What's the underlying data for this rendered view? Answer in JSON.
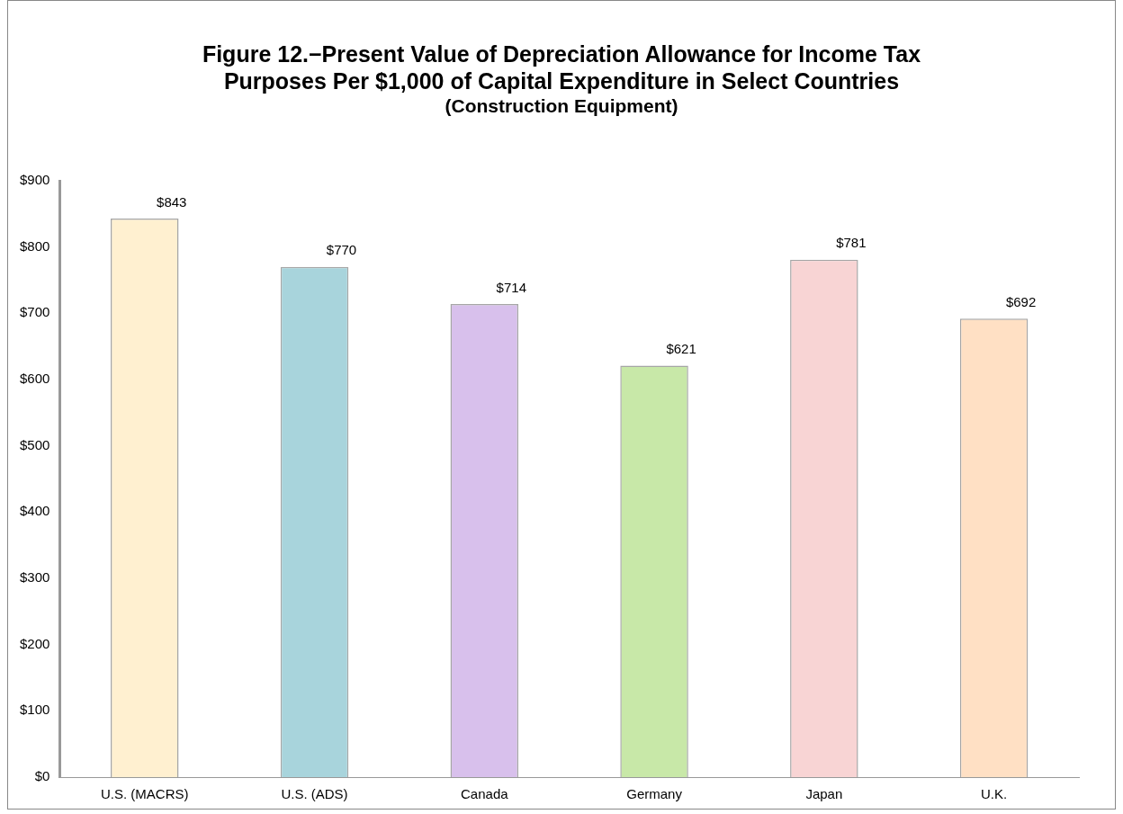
{
  "chart_data": {
    "type": "bar",
    "title": "Figure 12.−Present Value of Depreciation Allowance for Income Tax Purposes Per $1,000 of Capital Expenditure in Select Countries",
    "subtitle": "(Construction Equipment)",
    "categories": [
      "U.S. (MACRS)",
      "U.S. (ADS)",
      "Canada",
      "Germany",
      "Japan",
      "U.K."
    ],
    "values": [
      843,
      770,
      714,
      621,
      781,
      692
    ],
    "value_labels": [
      "$843",
      "$770",
      "$714",
      "$621",
      "$781",
      "$692"
    ],
    "colors": [
      "#fff0d0",
      "#a8d4dc",
      "#d8c0ec",
      "#c8e8a8",
      "#f8d4d4",
      "#ffe0c4"
    ],
    "ylim": [
      0,
      900
    ],
    "yticks": [
      {
        "value": 0,
        "label": "$0"
      },
      {
        "value": 100,
        "label": "$100"
      },
      {
        "value": 200,
        "label": "$200"
      },
      {
        "value": 300,
        "label": "$300"
      },
      {
        "value": 400,
        "label": "$400"
      },
      {
        "value": 500,
        "label": "$500"
      },
      {
        "value": 600,
        "label": "$600"
      },
      {
        "value": 700,
        "label": "$700"
      },
      {
        "value": 800,
        "label": "$800"
      },
      {
        "value": 900,
        "label": "$900"
      }
    ],
    "grid": false,
    "legend": false
  }
}
